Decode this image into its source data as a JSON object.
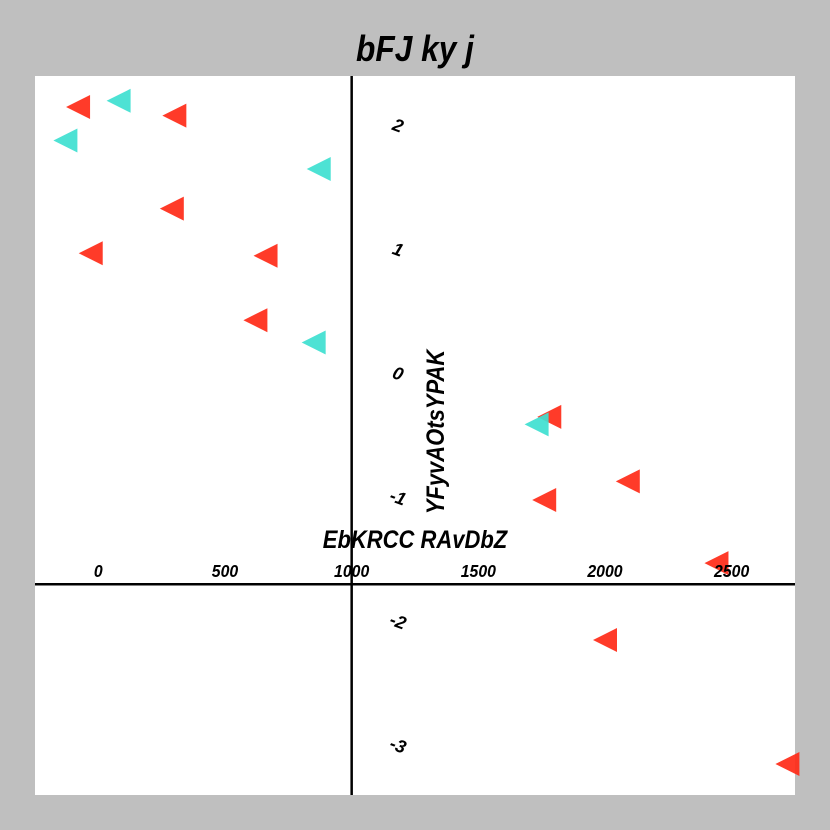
{
  "chart_data": {
    "type": "scatter",
    "title": "bFJ ky j",
    "xlabel": "EbKRCC RAvDbZ",
    "ylabel": "YFyvAOtsYPAK",
    "xlim": [
      -250,
      2750
    ],
    "ylim": [
      -3.4,
      2.4
    ],
    "xticks": [
      0,
      500,
      1000,
      1500,
      2000,
      2500
    ],
    "yticks": [
      -3,
      -2,
      -1,
      0,
      1,
      2
    ],
    "grid": false,
    "marker": "triangle-left",
    "series": [
      {
        "color": "#ff2a17",
        "points": [
          {
            "x": -80,
            "y": 2.15
          },
          {
            "x": 300,
            "y": 2.08
          },
          {
            "x": 290,
            "y": 1.33
          },
          {
            "x": -30,
            "y": 0.97
          },
          {
            "x": 660,
            "y": 0.95
          },
          {
            "x": 620,
            "y": 0.43
          },
          {
            "x": 1780,
            "y": -0.35
          },
          {
            "x": 1760,
            "y": -1.02
          },
          {
            "x": 2090,
            "y": -0.87
          },
          {
            "x": 2440,
            "y": -1.53
          },
          {
            "x": 2000,
            "y": -2.15
          },
          {
            "x": 2720,
            "y": -3.15
          }
        ]
      },
      {
        "color": "#3ee0d0",
        "points": [
          {
            "x": 80,
            "y": 2.2
          },
          {
            "x": -130,
            "y": 1.88
          },
          {
            "x": 870,
            "y": 1.65
          },
          {
            "x": 850,
            "y": 0.25
          },
          {
            "x": 1730,
            "y": -0.41
          }
        ]
      }
    ]
  }
}
